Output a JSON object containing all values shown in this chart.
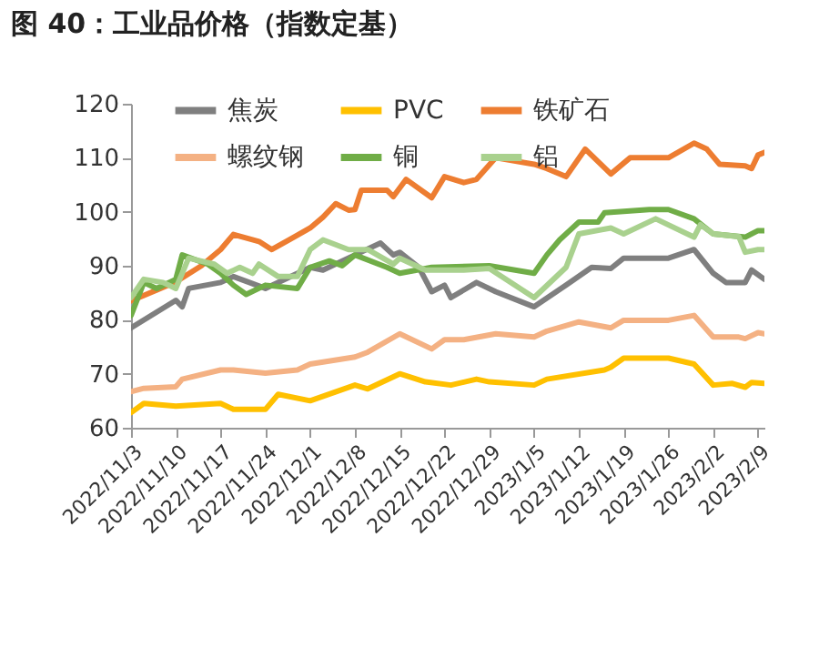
{
  "chart_data": {
    "type": "line",
    "title": "图 40：工业品价格（指数定基）",
    "xlim": [
      "2022-11-03",
      "2023-02-10"
    ],
    "xticks": [
      {
        "value": "2022-11-03",
        "label": "2022/11/3"
      },
      {
        "value": "2022-11-10",
        "label": "2022/11/10"
      },
      {
        "value": "2022-11-17",
        "label": "2022/11/17"
      },
      {
        "value": "2022-11-24",
        "label": "2022/11/24"
      },
      {
        "value": "2022-12-01",
        "label": "2022/12/1"
      },
      {
        "value": "2022-12-08",
        "label": "2022/12/8"
      },
      {
        "value": "2022-12-15",
        "label": "2022/12/15"
      },
      {
        "value": "2022-12-22",
        "label": "2022/12/22"
      },
      {
        "value": "2022-12-29",
        "label": "2022/12/29"
      },
      {
        "value": "2023-01-05",
        "label": "2023/1/5"
      },
      {
        "value": "2023-01-12",
        "label": "2023/1/12"
      },
      {
        "value": "2023-01-19",
        "label": "2023/1/19"
      },
      {
        "value": "2023-01-26",
        "label": "2023/1/26"
      },
      {
        "value": "2023-02-02",
        "label": "2023/2/2"
      },
      {
        "value": "2023-02-09",
        "label": "2023/2/9"
      }
    ],
    "ylim": [
      60,
      120
    ],
    "yticks": [
      60,
      70,
      80,
      90,
      100,
      110,
      120
    ],
    "grid": false,
    "legend": "top left",
    "marker": "none",
    "line_style": "solid",
    "series": [
      {
        "name": "焦炭",
        "color": "#7f7f7f",
        "x": [
          "2022-11-03",
          "2022-11-10",
          "2022-11-11",
          "2022-11-12",
          "2022-11-17",
          "2022-11-19",
          "2022-11-24",
          "2022-12-01",
          "2022-12-03",
          "2022-12-08",
          "2022-12-12",
          "2022-12-14",
          "2022-12-15",
          "2022-12-18",
          "2022-12-20",
          "2022-12-22",
          "2022-12-23",
          "2022-12-27",
          "2022-12-30",
          "2023-01-05",
          "2023-01-10",
          "2023-01-14",
          "2023-01-17",
          "2023-01-19",
          "2023-01-26",
          "2023-01-30",
          "2023-02-02",
          "2023-02-04",
          "2023-02-07",
          "2023-02-08",
          "2023-02-10"
        ],
        "values": [
          78.5,
          83.6,
          82.4,
          85.8,
          86.9,
          88,
          85.8,
          89.7,
          89.2,
          92,
          94.2,
          92,
          92.5,
          89.7,
          85.2,
          86.4,
          84.1,
          86.9,
          85.2,
          82.4,
          86.4,
          89.7,
          89.5,
          91.4,
          91.4,
          93,
          88.6,
          86.9,
          86.9,
          89.2,
          87.5
        ]
      },
      {
        "name": "PVC",
        "color": "#ffc000",
        "x": [
          "2022-11-03",
          "2022-11-05",
          "2022-11-10",
          "2022-11-17",
          "2022-11-19",
          "2022-11-24",
          "2022-11-26",
          "2022-12-01",
          "2022-12-08",
          "2022-12-10",
          "2022-12-15",
          "2022-12-19",
          "2022-12-23",
          "2022-12-27",
          "2022-12-29",
          "2023-01-05",
          "2023-01-07",
          "2023-01-16",
          "2023-01-17",
          "2023-01-19",
          "2023-01-26",
          "2023-01-30",
          "2023-02-02",
          "2023-02-05",
          "2023-02-07",
          "2023-02-08",
          "2023-02-10"
        ],
        "values": [
          62.8,
          64.5,
          64,
          64.5,
          63.4,
          63.4,
          66.2,
          65,
          67.9,
          67.2,
          70,
          68.5,
          67.9,
          69,
          68.5,
          67.9,
          69,
          70.7,
          71.2,
          72.9,
          72.9,
          71.8,
          67.9,
          68.2,
          67.5,
          68.4,
          68.2
        ]
      },
      {
        "name": "铁矿石",
        "color": "#ed7d31",
        "x": [
          "2022-11-03",
          "2022-11-07",
          "2022-11-10",
          "2022-11-14",
          "2022-11-17",
          "2022-11-19",
          "2022-11-23",
          "2022-11-25",
          "2022-11-28",
          "2022-12-01",
          "2022-12-03",
          "2022-12-05",
          "2022-12-07",
          "2022-12-08",
          "2022-12-09",
          "2022-12-13",
          "2022-12-14",
          "2022-12-16",
          "2022-12-20",
          "2022-12-22",
          "2022-12-25",
          "2022-12-27",
          "2022-12-30",
          "2023-01-05",
          "2023-01-07",
          "2023-01-10",
          "2023-01-13",
          "2023-01-17",
          "2023-01-20",
          "2023-01-26",
          "2023-01-30",
          "2023-02-01",
          "2023-02-03",
          "2023-02-07",
          "2023-02-08",
          "2023-02-09",
          "2023-02-10"
        ],
        "values": [
          83.5,
          85.5,
          87,
          90,
          93,
          95.8,
          94.5,
          93,
          95,
          97,
          99,
          101.5,
          100.3,
          100.4,
          104,
          104,
          102.8,
          106,
          102.6,
          106.5,
          105.4,
          106,
          110,
          108.8,
          108,
          106.5,
          111.6,
          107,
          110,
          110,
          112.7,
          111.6,
          108.8,
          108.5,
          108,
          110.5,
          111
        ]
      },
      {
        "name": "螺纹钢",
        "color": "#f4b183",
        "x": [
          "2022-11-03",
          "2022-11-05",
          "2022-11-10",
          "2022-11-11",
          "2022-11-17",
          "2022-11-19",
          "2022-11-24",
          "2022-11-29",
          "2022-12-01",
          "2022-12-08",
          "2022-12-10",
          "2022-12-15",
          "2022-12-20",
          "2022-12-22",
          "2022-12-25",
          "2022-12-30",
          "2023-01-05",
          "2023-01-07",
          "2023-01-12",
          "2023-01-17",
          "2023-01-19",
          "2023-01-26",
          "2023-01-30",
          "2023-02-02",
          "2023-02-06",
          "2023-02-07",
          "2023-02-09",
          "2023-02-10"
        ],
        "values": [
          66.7,
          67.3,
          67.6,
          69,
          70.7,
          70.7,
          70.1,
          70.7,
          71.8,
          73.1,
          74,
          77.4,
          74.6,
          76.3,
          76.3,
          77.4,
          76.8,
          77.9,
          79.6,
          78.5,
          79.9,
          79.9,
          80.8,
          76.8,
          76.8,
          76.5,
          77.6,
          77.4
        ]
      },
      {
        "name": "铜",
        "color": "#70ad47",
        "x": [
          "2022-11-03",
          "2022-11-05",
          "2022-11-07",
          "2022-11-10",
          "2022-11-11",
          "2022-11-15",
          "2022-11-17",
          "2022-11-19",
          "2022-11-21",
          "2022-11-24",
          "2022-11-29",
          "2022-12-01",
          "2022-12-04",
          "2022-12-06",
          "2022-12-08",
          "2022-12-13",
          "2022-12-15",
          "2022-12-20",
          "2022-12-29",
          "2023-01-05",
          "2023-01-07",
          "2023-01-09",
          "2023-01-12",
          "2023-01-15",
          "2023-01-16",
          "2023-01-23",
          "2023-01-26",
          "2023-01-30",
          "2023-02-02",
          "2023-02-07",
          "2023-02-09",
          "2023-02-10"
        ],
        "values": [
          80.8,
          86.9,
          85.8,
          87.5,
          92,
          90.3,
          88.6,
          86.4,
          84.7,
          86.4,
          85.8,
          89.7,
          90.9,
          90,
          92,
          89.7,
          88.6,
          89.7,
          90,
          88.6,
          92,
          94.8,
          98.1,
          98.1,
          99.8,
          100.4,
          100.4,
          98.7,
          95.9,
          95.3,
          96.5,
          96.5
        ]
      },
      {
        "name": "铝",
        "color": "#a9d18e",
        "x": [
          "2022-11-03",
          "2022-11-05",
          "2022-11-08",
          "2022-11-10",
          "2022-11-12",
          "2022-11-16",
          "2022-11-18",
          "2022-11-20",
          "2022-11-22",
          "2022-11-23",
          "2022-11-26",
          "2022-11-29",
          "2022-12-01",
          "2022-12-03",
          "2022-12-07",
          "2022-12-10",
          "2022-12-14",
          "2022-12-15",
          "2022-12-19",
          "2022-12-25",
          "2022-12-29",
          "2023-01-05",
          "2023-01-10",
          "2023-01-12",
          "2023-01-17",
          "2023-01-19",
          "2023-01-24",
          "2023-01-30",
          "2023-01-31",
          "2023-02-02",
          "2023-02-06",
          "2023-02-07",
          "2023-02-09",
          "2023-02-10"
        ],
        "values": [
          84.1,
          87.5,
          86.9,
          85.8,
          91.4,
          90.3,
          88.6,
          89.7,
          88.6,
          90.3,
          88,
          88,
          93,
          94.8,
          93,
          93,
          90.3,
          91.4,
          89.2,
          89.2,
          89.5,
          84.1,
          89.7,
          95.9,
          97,
          95.9,
          98.7,
          95.3,
          97.6,
          95.9,
          95.4,
          92.5,
          93,
          93
        ]
      }
    ]
  }
}
